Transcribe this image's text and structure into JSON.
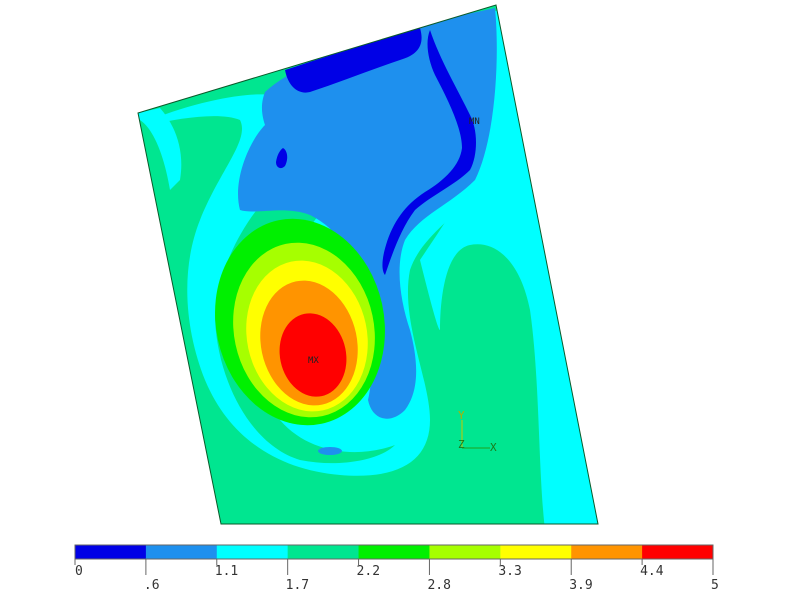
{
  "chart_data": {
    "type": "heatmap",
    "title": "",
    "colorbar": {
      "levels": [
        0,
        0.6,
        1.1,
        1.7,
        2.2,
        2.8,
        3.3,
        3.9,
        4.4,
        5
      ],
      "tick_labels": [
        "0",
        ".6",
        "1.1",
        "1.7",
        "2.2",
        "2.8",
        "3.3",
        "3.9",
        "4.4",
        "5"
      ],
      "colors": [
        "#0000e6",
        "#1e90ee",
        "#00ffff",
        "#00e690",
        "#00f000",
        "#a6ff00",
        "#ffff00",
        "#ff9400",
        "#ff0000"
      ],
      "placement": "bottom"
    },
    "markers": {
      "max_label": "MX",
      "min_label": "MN"
    },
    "triad": {
      "x_label": "X",
      "y_label": "Y",
      "z_label": "Z"
    }
  }
}
